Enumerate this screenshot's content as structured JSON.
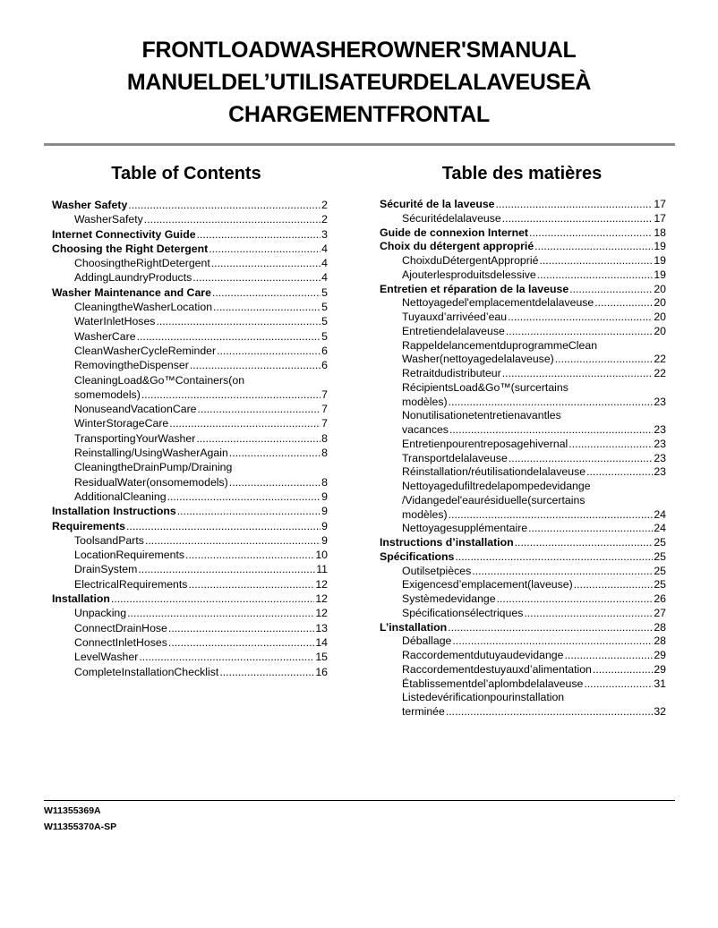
{
  "title_lines": [
    "FRONTLOADWASHEROWNER'SMANUAL",
    "MANUELDEL’UTILISATEURDELALAVEUSEÀ",
    "CHARGEMENTFRONTAL"
  ],
  "toc_en": {
    "heading": "Table of Contents",
    "entries": [
      {
        "level": 1,
        "text": "Washer Safety",
        "page": "2"
      },
      {
        "level": 2,
        "text": "WasherSafety",
        "page": "2"
      },
      {
        "level": 1,
        "text": "Internet Connectivity Guide",
        "page": "3"
      },
      {
        "level": 1,
        "text": "Choosing the Right Detergent",
        "page": "4"
      },
      {
        "level": 2,
        "text": "ChoosingtheRightDetergent",
        "page": "4"
      },
      {
        "level": 2,
        "text": "AddingLaundryProducts",
        "page": "4"
      },
      {
        "level": 1,
        "text": "Washer Maintenance and Care",
        "page": "5"
      },
      {
        "level": 2,
        "text": "CleaningtheWasherLocation",
        "page": "5"
      },
      {
        "level": 2,
        "text": "WaterInletHoses",
        "page": "5"
      },
      {
        "level": 2,
        "text": "WasherCare",
        "page": "5"
      },
      {
        "level": 2,
        "text": "CleanWasherCycleReminder",
        "page": "6"
      },
      {
        "level": 2,
        "text": "RemovingtheDispenser",
        "page": "6"
      },
      {
        "level": 2,
        "lead": "CleaningLoad&Go™Containers(on",
        "text": "somemodels)",
        "page": "7"
      },
      {
        "level": 2,
        "text": "NonuseandVacationCare",
        "page": "7"
      },
      {
        "level": 2,
        "text": "WinterStorageCare",
        "page": "7"
      },
      {
        "level": 2,
        "text": "TransportingYourWasher",
        "page": "8"
      },
      {
        "level": 2,
        "text": "Reinstalling/UsingWasherAgain",
        "page": "8"
      },
      {
        "level": 2,
        "lead": "CleaningtheDrainPump/Draining",
        "text": "ResidualWater(onsomemodels)",
        "page": "8"
      },
      {
        "level": 2,
        "text": "AdditionalCleaning",
        "page": "9"
      },
      {
        "level": 1,
        "text": "Installation Instructions",
        "page": "9"
      },
      {
        "level": 1,
        "text": "Requirements",
        "page": "9"
      },
      {
        "level": 2,
        "text": "ToolsandParts",
        "page": "9"
      },
      {
        "level": 2,
        "text": "LocationRequirements",
        "page": "10"
      },
      {
        "level": 2,
        "text": "DrainSystem",
        "page": "11"
      },
      {
        "level": 2,
        "text": "ElectricalRequirements",
        "page": "12"
      },
      {
        "level": 1,
        "text": "Installation",
        "page": "12"
      },
      {
        "level": 2,
        "text": "Unpacking",
        "page": "12"
      },
      {
        "level": 2,
        "text": "ConnectDrainHose",
        "page": "13"
      },
      {
        "level": 2,
        "text": "ConnectInletHoses",
        "page": "14"
      },
      {
        "level": 2,
        "text": "LevelWasher",
        "page": "15"
      },
      {
        "level": 2,
        "text": "CompleteInstallationChecklist",
        "page": "16"
      }
    ]
  },
  "toc_fr": {
    "heading": "Table des matières",
    "entries": [
      {
        "level": 1,
        "text": "Sécurité de la laveuse",
        "page": "17"
      },
      {
        "level": 2,
        "text": "Sécuritédelalaveuse",
        "page": "17"
      },
      {
        "level": 1,
        "text": "Guide de connexion Internet",
        "page": "18"
      },
      {
        "level": 1,
        "text": "Choix du détergent approprié",
        "page": "19"
      },
      {
        "level": 2,
        "text": "ChoixduDétergentApproprié",
        "page": "19"
      },
      {
        "level": 2,
        "text": "Ajouterlesproduitsdelessive",
        "page": "19"
      },
      {
        "level": 1,
        "text": "Entretien et réparation de la laveuse",
        "page": "20"
      },
      {
        "level": 2,
        "text": "Nettoyagedel'emplacementdelalaveuse",
        "page": "20"
      },
      {
        "level": 2,
        "text": "Tuyauxd’arrivéed’eau",
        "page": "20"
      },
      {
        "level": 2,
        "text": "Entretiendelalaveuse",
        "page": "20"
      },
      {
        "level": 2,
        "lead": "RappeldelancementduprogrammeClean",
        "text": "Washer(nettoyagedelalaveuse)",
        "page": "22"
      },
      {
        "level": 2,
        "text": "Retraitdudistributeur",
        "page": "22"
      },
      {
        "level": 2,
        "lead": "RécipientsLoad&Go™(surcertains",
        "text": "modèles)",
        "page": "23"
      },
      {
        "level": 2,
        "lead": "Nonutilisationetentretienavantles",
        "text": "vacances",
        "page": "23"
      },
      {
        "level": 2,
        "text": "Entretienpourentreposagehivernal",
        "page": "23"
      },
      {
        "level": 2,
        "text": "Transportdelalaveuse",
        "page": "23"
      },
      {
        "level": 2,
        "text": "Réinstallation/réutilisationdelalaveuse",
        "page": "23"
      },
      {
        "level": 2,
        "lead": "Nettoyagedufiltredelapompedevidange",
        "lead2": "/Vidangedel'eaurésiduelle(surcertains",
        "text": "modèles)",
        "page": "24"
      },
      {
        "level": 2,
        "text": "Nettoyagesupplémentaire",
        "page": "24"
      },
      {
        "level": 1,
        "text": "Instructions d’installation",
        "page": "25"
      },
      {
        "level": 1,
        "text": "Spécifications",
        "page": "25"
      },
      {
        "level": 2,
        "text": "Outilsetpièces",
        "page": "25"
      },
      {
        "level": 2,
        "text": "Exigencesd’emplacement(laveuse)",
        "page": "25"
      },
      {
        "level": 2,
        "text": "Systèmedevidange",
        "page": "26"
      },
      {
        "level": 2,
        "text": "Spécificationsélectriques",
        "page": "27"
      },
      {
        "level": 1,
        "text": "L’installation",
        "page": "28"
      },
      {
        "level": 2,
        "text": "Déballage",
        "page": "28"
      },
      {
        "level": 2,
        "text": "Raccordementdutuyaudevidange",
        "page": "29"
      },
      {
        "level": 2,
        "text": "Raccordementdestuyauxd’alimentation",
        "page": "29"
      },
      {
        "level": 2,
        "text": "Établissementdel’aplombdelalaveuse",
        "page": "31"
      },
      {
        "level": 2,
        "lead": "Listedevérificationpourinstallation",
        "text": "terminée",
        "page": "32"
      }
    ]
  },
  "footer": {
    "codes": [
      "W11355369A",
      "W11355370A-SP"
    ]
  }
}
